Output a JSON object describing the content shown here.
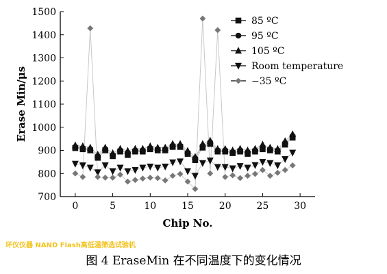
{
  "watermark": "环仪仪器 NAND Flash高低温筛选试验机",
  "caption": "图 4 EraseMin 在不同温度下的变化情况",
  "chart_data": {
    "type": "line",
    "xlabel": "Chip No.",
    "ylabel": "Erase Min/μs",
    "xlim": [
      -2,
      32
    ],
    "ylim": [
      700,
      1500
    ],
    "xticks": [
      0,
      5,
      10,
      15,
      20,
      25,
      30
    ],
    "yticks": [
      700,
      800,
      900,
      1000,
      1100,
      1200,
      1300,
      1400,
      1500
    ],
    "x": [
      0,
      1,
      2,
      3,
      4,
      5,
      6,
      7,
      8,
      9,
      10,
      11,
      12,
      13,
      14,
      15,
      16,
      17,
      18,
      19,
      20,
      21,
      22,
      23,
      24,
      25,
      26,
      27,
      28,
      29
    ],
    "legend_position": "top-right",
    "series": [
      {
        "name": "85 ºC",
        "marker": "square",
        "color": "#111111",
        "values": [
          910,
          905,
          900,
          868,
          900,
          875,
          895,
          880,
          895,
          895,
          905,
          900,
          900,
          915,
          915,
          885,
          858,
          912,
          928,
          895,
          895,
          888,
          895,
          885,
          895,
          905,
          900,
          895,
          925,
          955
        ]
      },
      {
        "name": "95 ºC",
        "marker": "circle",
        "color": "#111111",
        "values": [
          915,
          910,
          905,
          875,
          905,
          880,
          900,
          890,
          900,
          900,
          910,
          905,
          905,
          920,
          920,
          890,
          866,
          920,
          935,
          900,
          900,
          893,
          900,
          893,
          900,
          915,
          905,
          900,
          932,
          962
        ]
      },
      {
        "name": "105 ºC",
        "marker": "triangle-up",
        "color": "#111111",
        "values": [
          922,
          918,
          912,
          882,
          912,
          888,
          907,
          898,
          907,
          907,
          918,
          912,
          912,
          928,
          928,
          898,
          872,
          928,
          942,
          906,
          906,
          900,
          907,
          900,
          907,
          925,
          912,
          906,
          940,
          970
        ]
      },
      {
        "name": "Room temperature",
        "marker": "triangle-down",
        "color": "#111111",
        "values": [
          842,
          835,
          825,
          805,
          835,
          810,
          825,
          810,
          815,
          825,
          830,
          825,
          830,
          848,
          852,
          810,
          790,
          845,
          856,
          828,
          828,
          822,
          832,
          825,
          836,
          850,
          845,
          835,
          862,
          890
        ]
      },
      {
        "name": "−35 ºC",
        "marker": "diamond",
        "color": "#777777",
        "values": [
          800,
          785,
          1428,
          785,
          782,
          782,
          795,
          765,
          772,
          778,
          782,
          780,
          770,
          790,
          798,
          765,
          733,
          1470,
          800,
          1420,
          785,
          792,
          780,
          790,
          798,
          815,
          790,
          803,
          815,
          835
        ]
      }
    ]
  }
}
